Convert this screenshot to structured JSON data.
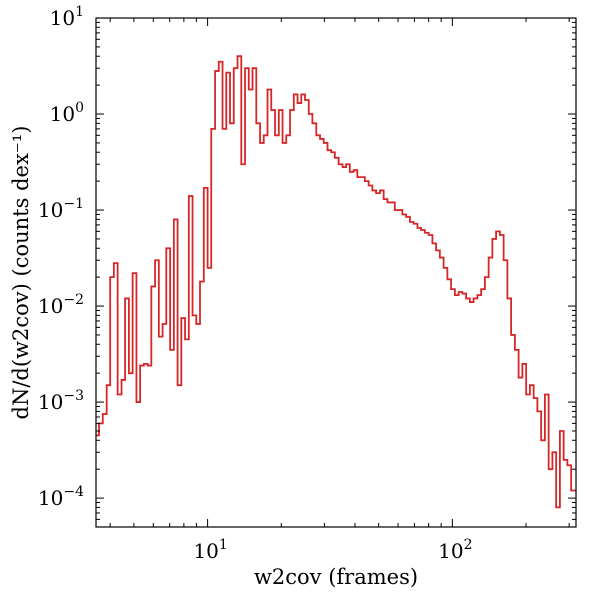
{
  "chart_data": {
    "type": "line",
    "style": "step-histogram",
    "xlabel": "w2cov (frames)",
    "ylabel": "dN/d(w2cov) (counts dex⁻¹)",
    "xscale": "log",
    "yscale": "log",
    "xlim": [
      3.5,
      320
    ],
    "ylim": [
      5e-05,
      10
    ],
    "grid": false,
    "legend": "none",
    "x_ticks": [
      {
        "value": 10,
        "base": "10",
        "exp": "1"
      },
      {
        "value": 100,
        "base": "10",
        "exp": "2"
      }
    ],
    "y_ticks": [
      {
        "value": 10,
        "base": "10",
        "exp": "1"
      },
      {
        "value": 1,
        "base": "10",
        "exp": "0"
      },
      {
        "value": 0.1,
        "base": "10",
        "exp": "−1"
      },
      {
        "value": 0.01,
        "base": "10",
        "exp": "−2"
      },
      {
        "value": 0.001,
        "base": "10",
        "exp": "−3"
      },
      {
        "value": 0.0001,
        "base": "10",
        "exp": "−4"
      }
    ],
    "series": [
      {
        "color": "#d62728",
        "x": [
          3.5,
          3.6,
          3.73,
          3.87,
          4.0,
          4.14,
          4.29,
          4.45,
          4.6,
          4.77,
          4.94,
          5.12,
          5.3,
          5.49,
          5.69,
          5.89,
          6.1,
          6.32,
          6.55,
          6.78,
          7.03,
          7.28,
          7.54,
          7.81,
          8.09,
          8.38,
          8.68,
          8.99,
          9.31,
          9.65,
          10.0,
          10.35,
          10.73,
          11.11,
          11.51,
          11.92,
          12.35,
          12.79,
          13.25,
          13.73,
          14.22,
          14.73,
          15.26,
          15.81,
          16.38,
          16.96,
          17.57,
          18.2,
          18.86,
          19.54,
          20.24,
          20.96,
          21.72,
          22.5,
          23.3,
          24.14,
          25.0,
          25.9,
          26.8,
          27.8,
          28.8,
          29.8,
          30.9,
          32.0,
          33.1,
          34.3,
          35.6,
          36.8,
          38.1,
          39.5,
          40.9,
          42.4,
          43.9,
          45.5,
          47.1,
          48.8,
          50.6,
          52.4,
          54.3,
          56.2,
          58.2,
          60.3,
          62.5,
          64.7,
          67.1,
          69.5,
          72.0,
          74.5,
          77.2,
          80.0,
          82.9,
          85.8,
          88.9,
          92.1,
          95.4,
          98.8,
          102.4,
          106.1,
          109.9,
          113.8,
          117.9,
          122.1,
          126.5,
          131.1,
          135.8,
          140.7,
          145.7,
          150.9,
          156.4,
          162.0,
          167.8,
          173.8,
          180.1,
          186.5,
          193.2,
          200.2,
          207.4,
          214.8,
          222.5,
          230.5,
          238.8,
          247.4,
          256.3,
          265.5,
          275.0,
          284.9,
          295.1,
          305.7,
          316.7
        ],
        "values": [
          0.00045,
          0.0006,
          0.00075,
          0.0015,
          0.02,
          0.028,
          0.0012,
          0.0017,
          0.012,
          0.002,
          0.022,
          0.001,
          0.0024,
          0.0025,
          0.0024,
          0.016,
          0.03,
          0.0048,
          0.0065,
          0.04,
          0.0035,
          0.08,
          0.0015,
          0.0075,
          0.0045,
          0.14,
          0.008,
          0.0065,
          0.018,
          0.17,
          0.025,
          0.7,
          2.8,
          3.5,
          0.7,
          2.7,
          0.8,
          3.0,
          4.0,
          0.3,
          3.0,
          1.8,
          3.0,
          0.8,
          0.5,
          0.6,
          1.8,
          1.1,
          0.6,
          1.1,
          0.5,
          0.6,
          1.1,
          1.6,
          1.3,
          1.6,
          1.4,
          1.0,
          0.8,
          0.6,
          0.55,
          0.5,
          0.42,
          0.4,
          0.35,
          0.3,
          0.28,
          0.3,
          0.25,
          0.26,
          0.22,
          0.22,
          0.2,
          0.18,
          0.16,
          0.15,
          0.16,
          0.13,
          0.12,
          0.12,
          0.1,
          0.1,
          0.09,
          0.085,
          0.075,
          0.072,
          0.065,
          0.062,
          0.058,
          0.055,
          0.045,
          0.038,
          0.032,
          0.025,
          0.019,
          0.015,
          0.013,
          0.014,
          0.0135,
          0.012,
          0.011,
          0.012,
          0.013,
          0.015,
          0.02,
          0.032,
          0.05,
          0.06,
          0.055,
          0.03,
          0.012,
          0.005,
          0.0035,
          0.0018,
          0.0025,
          0.0012,
          0.0015,
          0.0011,
          0.0008,
          0.0004,
          0.0012,
          0.0002,
          0.0003,
          8e-05,
          0.0005,
          0.00025,
          0.00022,
          0.00012,
          0.00012
        ]
      }
    ]
  }
}
